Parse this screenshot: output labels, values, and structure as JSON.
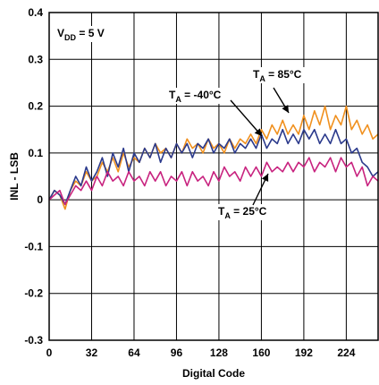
{
  "chart_data": {
    "type": "line",
    "xlabel": "Digital Code",
    "ylabel": "INL - LSB",
    "xlim": [
      0,
      248
    ],
    "ylim": [
      -0.3,
      0.4
    ],
    "x_ticks": [
      0,
      32,
      64,
      96,
      128,
      160,
      192,
      224
    ],
    "x_tick_labels": [
      "0",
      "32",
      "64",
      "96",
      "128",
      "160",
      "192",
      "224"
    ],
    "y_ticks": [
      -0.3,
      -0.2,
      -0.1,
      0,
      0.1,
      0.2,
      0.3,
      0.4
    ],
    "y_tick_labels": [
      "-0.3",
      "-0.2",
      "-0.1",
      "0",
      "0.1",
      "0.2",
      "0.3",
      "0.4"
    ],
    "grid": true,
    "annotations": [
      {
        "text": "V",
        "sub": "DD",
        "rest": " = 5 V"
      },
      {
        "text": "T",
        "sub": "A",
        "rest": " = 85°C",
        "series": 0
      },
      {
        "text": "T",
        "sub": "A",
        "rest": " = -40°C",
        "series": 1
      },
      {
        "text": "T",
        "sub": "A",
        "rest": " = 25°C",
        "series": 2
      }
    ],
    "series": [
      {
        "name": "TA = 85°C",
        "color": "#f0901e",
        "x": [
          0,
          4,
          8,
          12,
          16,
          20,
          24,
          28,
          32,
          36,
          40,
          44,
          48,
          52,
          56,
          60,
          64,
          68,
          72,
          76,
          80,
          84,
          88,
          92,
          96,
          100,
          104,
          108,
          112,
          116,
          120,
          124,
          128,
          132,
          136,
          140,
          144,
          148,
          152,
          156,
          160,
          164,
          168,
          172,
          176,
          180,
          184,
          188,
          192,
          196,
          200,
          204,
          208,
          212,
          216,
          220,
          224,
          228,
          232,
          236,
          240,
          244,
          248
        ],
        "y": [
          0.0,
          0.02,
          0.01,
          -0.02,
          0.02,
          0.04,
          0.03,
          0.06,
          0.04,
          0.05,
          0.08,
          0.06,
          0.09,
          0.06,
          0.1,
          0.07,
          0.09,
          0.08,
          0.11,
          0.09,
          0.12,
          0.1,
          0.11,
          0.09,
          0.12,
          0.1,
          0.13,
          0.11,
          0.12,
          0.1,
          0.13,
          0.11,
          0.12,
          0.1,
          0.13,
          0.11,
          0.13,
          0.12,
          0.14,
          0.12,
          0.15,
          0.13,
          0.16,
          0.14,
          0.17,
          0.14,
          0.16,
          0.14,
          0.18,
          0.15,
          0.19,
          0.16,
          0.2,
          0.15,
          0.18,
          0.16,
          0.2,
          0.15,
          0.17,
          0.14,
          0.16,
          0.13,
          0.14
        ]
      },
      {
        "name": "TA = -40°C",
        "color": "#2b3a8c",
        "x": [
          0,
          4,
          8,
          12,
          16,
          20,
          24,
          28,
          32,
          36,
          40,
          44,
          48,
          52,
          56,
          60,
          64,
          68,
          72,
          76,
          80,
          84,
          88,
          92,
          96,
          100,
          104,
          108,
          112,
          116,
          120,
          124,
          128,
          132,
          136,
          140,
          144,
          148,
          152,
          156,
          160,
          164,
          168,
          172,
          176,
          180,
          184,
          188,
          192,
          196,
          200,
          204,
          208,
          212,
          216,
          220,
          224,
          228,
          232,
          236,
          240,
          244,
          248
        ],
        "y": [
          0.0,
          0.02,
          0.01,
          -0.01,
          0.02,
          0.05,
          0.03,
          0.07,
          0.04,
          0.06,
          0.09,
          0.05,
          0.1,
          0.07,
          0.11,
          0.06,
          0.1,
          0.08,
          0.11,
          0.09,
          0.12,
          0.08,
          0.11,
          0.09,
          0.12,
          0.1,
          0.12,
          0.09,
          0.12,
          0.11,
          0.13,
          0.1,
          0.12,
          0.11,
          0.13,
          0.1,
          0.12,
          0.11,
          0.13,
          0.11,
          0.14,
          0.11,
          0.13,
          0.12,
          0.15,
          0.12,
          0.14,
          0.12,
          0.15,
          0.13,
          0.15,
          0.12,
          0.14,
          0.12,
          0.15,
          0.12,
          0.13,
          0.1,
          0.11,
          0.08,
          0.07,
          0.05,
          0.06
        ]
      },
      {
        "name": "TA = 25°C",
        "color": "#c8237f",
        "x": [
          0,
          4,
          8,
          12,
          16,
          20,
          24,
          28,
          32,
          36,
          40,
          44,
          48,
          52,
          56,
          60,
          64,
          68,
          72,
          76,
          80,
          84,
          88,
          92,
          96,
          100,
          104,
          108,
          112,
          116,
          120,
          124,
          128,
          132,
          136,
          140,
          144,
          148,
          152,
          156,
          160,
          164,
          168,
          172,
          176,
          180,
          184,
          188,
          192,
          196,
          200,
          204,
          208,
          212,
          216,
          220,
          224,
          228,
          232,
          236,
          240,
          244,
          248
        ],
        "y": [
          0.0,
          0.01,
          0.02,
          -0.01,
          0.01,
          0.03,
          0.02,
          0.04,
          0.02,
          0.05,
          0.03,
          0.06,
          0.04,
          0.05,
          0.03,
          0.06,
          0.04,
          0.05,
          0.03,
          0.06,
          0.04,
          0.06,
          0.03,
          0.05,
          0.04,
          0.06,
          0.03,
          0.06,
          0.04,
          0.05,
          0.03,
          0.06,
          0.04,
          0.07,
          0.05,
          0.06,
          0.04,
          0.07,
          0.05,
          0.07,
          0.05,
          0.08,
          0.06,
          0.07,
          0.06,
          0.08,
          0.06,
          0.08,
          0.07,
          0.09,
          0.06,
          0.08,
          0.07,
          0.09,
          0.06,
          0.09,
          0.07,
          0.08,
          0.05,
          0.07,
          0.03,
          0.05,
          0.04
        ]
      }
    ]
  }
}
